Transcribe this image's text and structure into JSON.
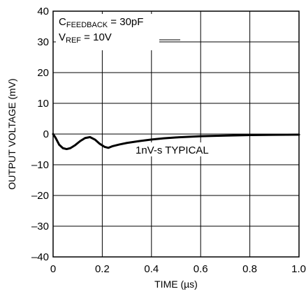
{
  "chart_data": {
    "type": "line",
    "xlabel": "TIME (µs)",
    "ylabel": "OUTPUT VOLTAGE (mV)",
    "xlim": [
      0,
      1.0
    ],
    "ylim": [
      -40,
      40
    ],
    "xticks": [
      0,
      0.2,
      0.4,
      0.6,
      0.8,
      1.0
    ],
    "xtick_labels": [
      "0",
      "0.2",
      "0.4",
      "0.6",
      "0.8",
      "1.0"
    ],
    "yticks": [
      -40,
      -30,
      -20,
      -10,
      0,
      10,
      20,
      30,
      40
    ],
    "ytick_labels": [
      "–40",
      "–30",
      "–20",
      "–10",
      "0",
      "10",
      "20",
      "30",
      "40"
    ],
    "grid": true,
    "annotations": {
      "cfb_main": "C",
      "cfb_sub": "FEEDBACK",
      "cfb_rest": " = 30pF",
      "vref_main": "V",
      "vref_sub": "REF",
      "vref_rest": " = 10V",
      "typical": "1nV-s TYPICAL"
    },
    "series": [
      {
        "x": [
          0,
          0.01,
          0.025,
          0.04,
          0.055,
          0.07,
          0.09,
          0.11,
          0.13,
          0.15,
          0.17,
          0.19,
          0.21,
          0.225,
          0.24,
          0.27,
          0.3,
          0.35,
          0.4,
          0.45,
          0.5,
          0.6,
          0.7,
          0.8,
          0.9,
          1.0
        ],
        "y": [
          0,
          -1.2,
          -3.5,
          -4.6,
          -4.9,
          -4.6,
          -3.6,
          -2.3,
          -1.3,
          -1.0,
          -1.8,
          -3.2,
          -4.2,
          -4.5,
          -4.0,
          -3.4,
          -2.9,
          -2.3,
          -1.8,
          -1.4,
          -1.1,
          -0.7,
          -0.5,
          -0.35,
          -0.25,
          -0.2
        ]
      }
    ]
  }
}
